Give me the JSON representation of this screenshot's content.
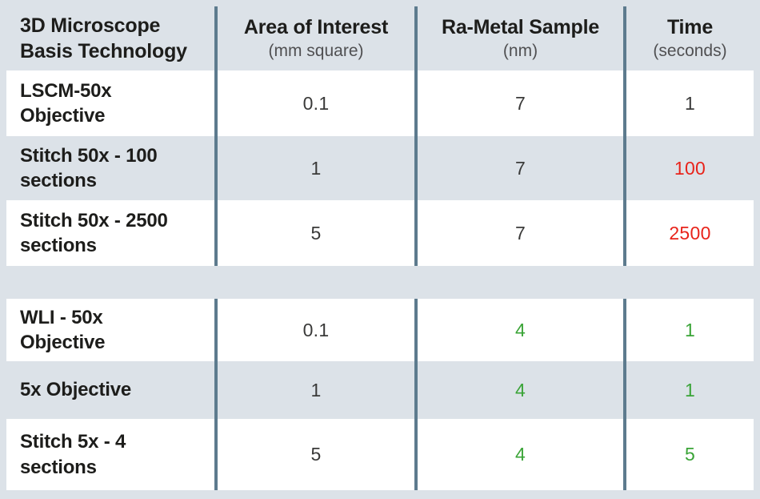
{
  "colors": {
    "page-bg": "#dce2e8",
    "row-bg": "#ffffff",
    "row-alt-bg": "#dce2e8",
    "divider": "#5d7b8e",
    "text-dark": "#1d1d1b",
    "text-number": "#3a3a39",
    "text-sub": "#505052",
    "red": "#e8231a",
    "green": "#3aa437"
  },
  "header": {
    "col1_line1": "3D Microscope",
    "col1_line2": "Basis Technology",
    "col2_title": "Area of Interest",
    "col2_unit": "(mm square)",
    "col3_title": "Ra-Metal Sample",
    "col3_unit": "(nm)",
    "col4_title": "Time",
    "col4_unit": "(seconds)"
  },
  "groups": [
    {
      "rows": [
        {
          "label_line1": "LSCM-50x",
          "label_line2": "Objective",
          "area": "0.1",
          "ra": "7",
          "time": "1"
        },
        {
          "label_line1": "Stitch 50x - 100",
          "label_line2": "sections",
          "area": "1",
          "ra": "7",
          "time": "100"
        },
        {
          "label_line1": "Stitch 50x - 2500",
          "label_line2": "sections",
          "area": "5",
          "ra": "7",
          "time": "2500"
        }
      ]
    },
    {
      "rows": [
        {
          "label_line1": "WLI - 50x",
          "label_line2": "Objective",
          "area": "0.1",
          "ra": "4",
          "time": "1"
        },
        {
          "label_line1": "5x Objective",
          "area": "1",
          "ra": "4",
          "time": "1"
        },
        {
          "label_line1": "Stitch 5x - 4",
          "label_line2": "sections",
          "area": "5",
          "ra": "4",
          "time": "5"
        }
      ]
    }
  ],
  "chart_data": {
    "type": "table",
    "columns": [
      "3D Microscope Basis Technology",
      "Area of Interest (mm square)",
      "Ra-Metal Sample (nm)",
      "Time (seconds)"
    ],
    "groups": [
      {
        "rows": [
          {
            "technology": "LSCM-50x Objective",
            "area_mm_square": 0.1,
            "ra_metal_nm": 7,
            "time_seconds": 1,
            "ra_color": "black",
            "time_color": "black"
          },
          {
            "technology": "Stitch 50x - 100 sections",
            "area_mm_square": 1,
            "ra_metal_nm": 7,
            "time_seconds": 100,
            "ra_color": "black",
            "time_color": "red"
          },
          {
            "technology": "Stitch 50x - 2500 sections",
            "area_mm_square": 5,
            "ra_metal_nm": 7,
            "time_seconds": 2500,
            "ra_color": "black",
            "time_color": "red"
          }
        ]
      },
      {
        "rows": [
          {
            "technology": "WLI - 50x Objective",
            "area_mm_square": 0.1,
            "ra_metal_nm": 4,
            "time_seconds": 1,
            "ra_color": "green",
            "time_color": "green"
          },
          {
            "technology": "5x Objective",
            "area_mm_square": 1,
            "ra_metal_nm": 4,
            "time_seconds": 1,
            "ra_color": "green",
            "time_color": "green"
          },
          {
            "technology": "Stitch 5x - 4 sections",
            "area_mm_square": 5,
            "ra_metal_nm": 4,
            "time_seconds": 5,
            "ra_color": "green",
            "time_color": "green"
          }
        ]
      }
    ]
  }
}
